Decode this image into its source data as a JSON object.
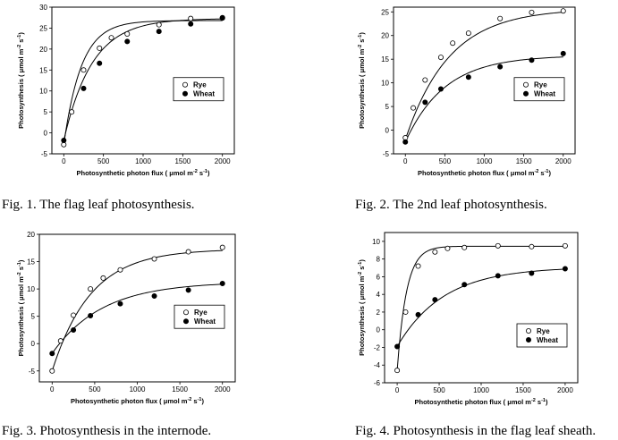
{
  "chart_data": [
    {
      "type": "scatter",
      "caption": "Fig. 1. The flag leaf photosynthesis.",
      "xlabel": "Photosynthetic photon flux ( μmol m-2 s-1)",
      "ylabel": "Photosynthesis ( μmol m-2 s-1)",
      "xlim": [
        -150,
        2150
      ],
      "ylim": [
        -5,
        30
      ],
      "xticks": [
        0,
        500,
        1000,
        1500,
        2000
      ],
      "yticks": [
        -5,
        0,
        5,
        10,
        15,
        20,
        25,
        30
      ],
      "legend_position": "center-right",
      "series": [
        {
          "name": "Rye",
          "marker": "open-circle",
          "x": [
            0,
            100,
            250,
            450,
            600,
            800,
            1200,
            1600,
            2000
          ],
          "y": [
            -2.8,
            5.0,
            15.0,
            20.2,
            22.7,
            23.6,
            25.8,
            27.3,
            27.5
          ]
        },
        {
          "name": "Wheat",
          "marker": "filled-circle",
          "x": [
            0,
            250,
            450,
            800,
            1200,
            1600,
            2000
          ],
          "y": [
            -1.8,
            10.6,
            16.6,
            21.8,
            24.2,
            26.0,
            27.4
          ]
        }
      ],
      "curves": [
        {
          "series": "Rye",
          "pmax": 26.8,
          "k": 0.0045,
          "y0": -2.8
        },
        {
          "series": "Wheat",
          "pmax": 27.3,
          "k": 0.0028,
          "y0": -1.8
        }
      ]
    },
    {
      "type": "scatter",
      "caption": "Fig. 2. The 2nd leaf photosynthesis.",
      "xlabel": "Photosynthetic photon flux ( μmol m-2 s-1)",
      "ylabel": "Photosynthesis ( μmol m-2 s-1)",
      "xlim": [
        -150,
        2150
      ],
      "ylim": [
        -5,
        26
      ],
      "xticks": [
        0,
        500,
        1000,
        1500,
        2000
      ],
      "yticks": [
        -5,
        0,
        5,
        10,
        15,
        20,
        25
      ],
      "legend_position": "center-right",
      "series": [
        {
          "name": "Rye",
          "marker": "open-circle",
          "x": [
            0,
            100,
            250,
            450,
            600,
            800,
            1200,
            1600,
            2000
          ],
          "y": [
            -1.6,
            4.7,
            10.6,
            15.4,
            18.4,
            20.5,
            23.6,
            24.9,
            25.2
          ]
        },
        {
          "name": "Wheat",
          "marker": "filled-circle",
          "x": [
            0,
            250,
            450,
            800,
            1200,
            1600,
            2000
          ],
          "y": [
            -2.5,
            5.9,
            8.7,
            11.2,
            13.4,
            14.8,
            16.2
          ]
        }
      ],
      "curves": [
        {
          "series": "Rye",
          "pmax": 25.7,
          "k": 0.0018,
          "y0": -2.0
        },
        {
          "series": "Wheat",
          "pmax": 15.8,
          "k": 0.002,
          "y0": -2.5
        }
      ]
    },
    {
      "type": "scatter",
      "caption": "Fig. 3. Photosynthesis in the internode.",
      "xlabel": "Photosynthetic photon flux ( μmol m-2 s-1)",
      "ylabel": "Photosynthesis ( μmol m-2 s-1)",
      "xlim": [
        -150,
        2150
      ],
      "ylim": [
        -7,
        20
      ],
      "xticks": [
        0,
        500,
        1000,
        1500,
        2000
      ],
      "yticks": [
        -5,
        0,
        5,
        10,
        15,
        20
      ],
      "legend_position": "center-right",
      "series": [
        {
          "name": "Rye",
          "marker": "open-circle",
          "x": [
            0,
            100,
            250,
            450,
            600,
            800,
            1200,
            1600,
            2000
          ],
          "y": [
            -5.0,
            0.5,
            5.2,
            10.0,
            12.0,
            13.5,
            15.5,
            16.8,
            17.6
          ]
        },
        {
          "name": "Wheat",
          "marker": "filled-circle",
          "x": [
            0,
            250,
            450,
            800,
            1200,
            1600,
            2000
          ],
          "y": [
            -1.8,
            2.5,
            5.1,
            7.3,
            8.7,
            9.8,
            11.0
          ]
        }
      ],
      "curves": [
        {
          "series": "Rye",
          "pmax": 17.3,
          "k": 0.0022,
          "y0": -5.0
        },
        {
          "series": "Wheat",
          "pmax": 11.3,
          "k": 0.0017,
          "y0": -1.8
        }
      ]
    },
    {
      "type": "scatter",
      "caption": "Fig. 4. Photosynthesis in the flag leaf sheath.",
      "xlabel": "Photosynthetic photon flux ( μmol m-2 s-1)",
      "ylabel": "Photosynthesis ( μmol m-2 s-1)",
      "xlim": [
        -150,
        2150
      ],
      "ylim": [
        -6,
        11
      ],
      "xticks": [
        0,
        500,
        1000,
        1500,
        2000
      ],
      "yticks": [
        -6,
        -4,
        -2,
        0,
        2,
        4,
        6,
        8,
        10
      ],
      "legend_position": "lower-right",
      "series": [
        {
          "name": "Rye",
          "marker": "open-circle",
          "x": [
            0,
            100,
            250,
            450,
            600,
            800,
            1200,
            1600,
            2000
          ],
          "y": [
            -4.6,
            2.0,
            7.2,
            8.8,
            9.2,
            9.3,
            9.5,
            9.4,
            9.5
          ]
        },
        {
          "name": "Wheat",
          "marker": "filled-circle",
          "x": [
            0,
            250,
            450,
            800,
            1200,
            1600,
            2000
          ],
          "y": [
            -1.9,
            1.7,
            3.4,
            5.1,
            6.1,
            6.4,
            6.9
          ]
        }
      ],
      "curves": [
        {
          "series": "Rye",
          "pmax": 9.45,
          "k": 0.009,
          "y0": -4.6
        },
        {
          "series": "Wheat",
          "pmax": 7.1,
          "k": 0.0018,
          "y0": -1.9
        }
      ]
    }
  ]
}
